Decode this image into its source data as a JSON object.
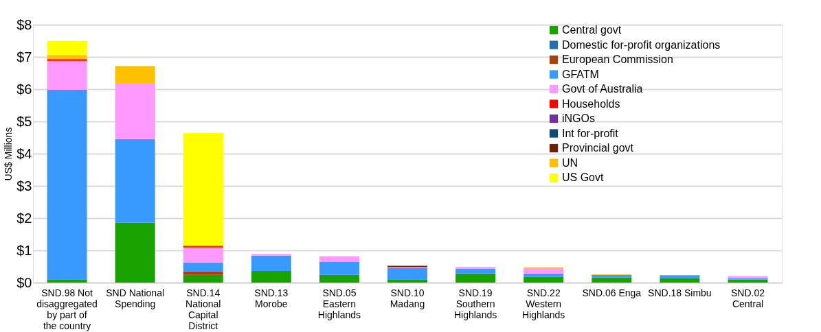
{
  "chart_data": {
    "type": "bar",
    "stacked": true,
    "ylabel": "US$ Millions",
    "categories": [
      "SND.98 Not disaggregated by part of the country",
      "SND National Spending",
      "SND.14 National Capital District",
      "SND.13 Morobe",
      "SND.05 Eastern Highlands",
      "SND.10 Madang",
      "SND.19 Southern Highlands",
      "SND.22 Western Highlands",
      "SND.06 Enga",
      "SND.18 Simbu",
      "SND.02 Central"
    ],
    "series": [
      {
        "name": "Central govt",
        "color": "#19a200",
        "values": [
          0.1,
          1.86,
          0.24,
          0.36,
          0.24,
          0.1,
          0.28,
          0.18,
          0.16,
          0.13,
          0.09
        ]
      },
      {
        "name": "Domestic for-profit organizations",
        "color": "#1f6fb4",
        "values": [
          null,
          null,
          null,
          null,
          null,
          null,
          null,
          null,
          null,
          null,
          null
        ]
      },
      {
        "name": "European Commission",
        "color": "#a5420d",
        "values": [
          null,
          null,
          0.11,
          null,
          null,
          null,
          null,
          null,
          null,
          null,
          null
        ]
      },
      {
        "name": "GFATM",
        "color": "#3899ff",
        "values": [
          5.88,
          2.59,
          0.28,
          0.48,
          0.4,
          0.35,
          0.15,
          0.1,
          0.08,
          0.1,
          0.05
        ]
      },
      {
        "name": "Govt of Australia",
        "color": "#ff99ff",
        "values": [
          0.9,
          1.74,
          0.46,
          0.05,
          0.18,
          0.03,
          0.06,
          0.17,
          null,
          null,
          0.06
        ]
      },
      {
        "name": "Households",
        "color": "#ff0000",
        "values": [
          0.05,
          null,
          0.04,
          null,
          null,
          null,
          null,
          null,
          null,
          null,
          null
        ]
      },
      {
        "name": "iNGOs",
        "color": "#7030a0",
        "values": [
          null,
          null,
          null,
          null,
          null,
          null,
          null,
          null,
          null,
          null,
          null
        ]
      },
      {
        "name": "Int for-profit",
        "color": "#0f4c75",
        "values": [
          null,
          null,
          null,
          null,
          null,
          null,
          null,
          null,
          null,
          null,
          null
        ]
      },
      {
        "name": "Provincial govt",
        "color": "#6b2106",
        "values": [
          null,
          null,
          null,
          null,
          null,
          0.04,
          null,
          null,
          null,
          null,
          null
        ]
      },
      {
        "name": "UN",
        "color": "#ffc000",
        "values": [
          0.13,
          0.53,
          0.04,
          null,
          null,
          null,
          null,
          0.03,
          0.02,
          null,
          null
        ]
      },
      {
        "name": "US Govt",
        "color": "#ffff00",
        "values": [
          0.43,
          null,
          3.47,
          null,
          null,
          null,
          null,
          null,
          null,
          null,
          null
        ]
      }
    ],
    "ylim": [
      0,
      8
    ],
    "yticks": [
      {
        "value": 0,
        "label": "$0"
      },
      {
        "value": 1,
        "label": "$1"
      },
      {
        "value": 2,
        "label": "$2"
      },
      {
        "value": 3,
        "label": "$3"
      },
      {
        "value": 4,
        "label": "$4"
      },
      {
        "value": 5,
        "label": "$5"
      },
      {
        "value": 6,
        "label": "$6"
      },
      {
        "value": 7,
        "label": "$7"
      },
      {
        "value": 8,
        "label": "$8"
      }
    ],
    "grid": "y",
    "legend": "top right"
  }
}
